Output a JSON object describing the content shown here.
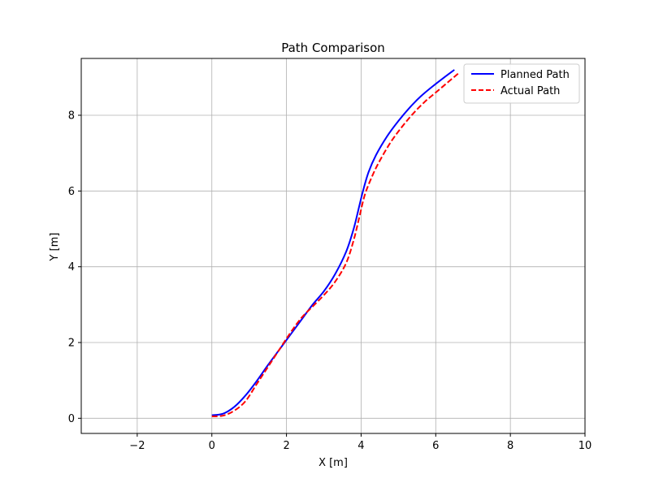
{
  "chart_data": {
    "type": "line",
    "title": "Path Comparison",
    "xlabel": "X [m]",
    "ylabel": "Y [m]",
    "xlim": [
      -3.5,
      10
    ],
    "ylim": [
      -0.4,
      9.5
    ],
    "xticks": [
      -2,
      0,
      2,
      4,
      6,
      8,
      10
    ],
    "yticks": [
      0,
      2,
      4,
      6,
      8
    ],
    "grid": true,
    "legend_position": "top-right",
    "series": [
      {
        "name": "Planned Path",
        "color": "#0000ff",
        "style": "solid",
        "x": [
          0.0,
          0.3,
          0.6,
          0.9,
          1.2,
          1.5,
          1.8,
          2.1,
          2.4,
          2.7,
          3.0,
          3.3,
          3.6,
          3.8,
          3.95,
          4.05,
          4.2,
          4.4,
          4.7,
          5.0,
          5.3,
          5.6,
          5.9,
          6.2,
          6.5
        ],
        "y": [
          0.08,
          0.12,
          0.3,
          0.6,
          0.98,
          1.4,
          1.8,
          2.2,
          2.6,
          3.0,
          3.35,
          3.8,
          4.4,
          5.0,
          5.6,
          6.0,
          6.5,
          6.95,
          7.45,
          7.85,
          8.2,
          8.5,
          8.75,
          8.98,
          9.2
        ]
      },
      {
        "name": "Actual Path",
        "color": "#ff0000",
        "style": "dashed",
        "x": [
          0.0,
          0.3,
          0.6,
          0.9,
          1.2,
          1.5,
          1.8,
          2.1,
          2.4,
          2.7,
          3.0,
          3.3,
          3.6,
          3.8,
          3.95,
          4.1,
          4.3,
          4.5,
          4.8,
          5.1,
          5.4,
          5.7,
          6.0,
          6.3,
          6.6
        ],
        "y": [
          0.05,
          0.07,
          0.2,
          0.45,
          0.9,
          1.35,
          1.8,
          2.25,
          2.65,
          2.95,
          3.25,
          3.6,
          4.1,
          4.7,
          5.3,
          5.9,
          6.4,
          6.8,
          7.3,
          7.7,
          8.05,
          8.35,
          8.6,
          8.85,
          9.1
        ]
      }
    ]
  }
}
